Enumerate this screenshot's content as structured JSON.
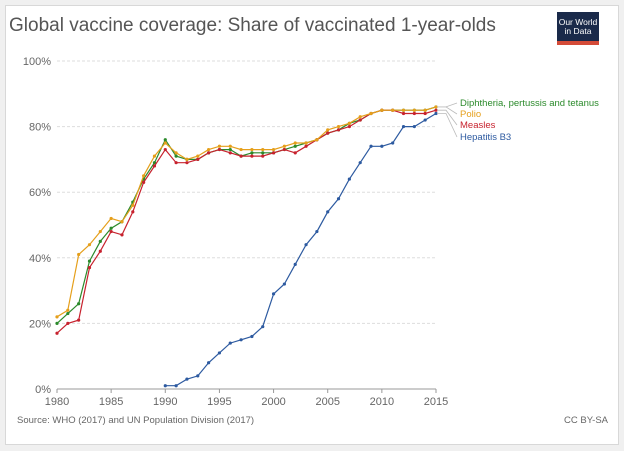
{
  "header": {
    "title": "Global vaccine coverage: Share of vaccinated 1-year-olds",
    "logo_line1": "Our World",
    "logo_line2": "in Data"
  },
  "footer": {
    "source": "Source: WHO (2017) and UN Population Division (2017)",
    "license": "CC BY-SA"
  },
  "colors": {
    "dtp": "#2b8a2b",
    "polio": "#e59f1b",
    "measles": "#c7222e",
    "hepb3": "#2d5aa0"
  },
  "chart_data": {
    "type": "line",
    "title": "Global vaccine coverage: Share of vaccinated 1-year-olds",
    "xlabel": "",
    "ylabel": "",
    "xlim": [
      1980,
      2015
    ],
    "ylim": [
      0,
      100
    ],
    "x_ticks": [
      "1980",
      "1985",
      "1990",
      "1995",
      "2000",
      "2005",
      "2010",
      "2015"
    ],
    "y_ticks": [
      "0%",
      "20%",
      "40%",
      "60%",
      "80%",
      "100%"
    ],
    "grid": true,
    "legend": "right",
    "series": [
      {
        "name": "Diphtheria, pertussis and tetanus",
        "x": [
          1980,
          1981,
          1982,
          1983,
          1984,
          1985,
          1986,
          1987,
          1988,
          1989,
          1990,
          1991,
          1992,
          1993,
          1994,
          1995,
          1996,
          1997,
          1998,
          1999,
          2000,
          2001,
          2002,
          2003,
          2004,
          2005,
          2006,
          2007,
          2008,
          2009,
          2010,
          2011,
          2012,
          2013,
          2014,
          2015
        ],
        "values": [
          20,
          23,
          26,
          39,
          45,
          49,
          51,
          57,
          64,
          69,
          76,
          71,
          70,
          70,
          72,
          73,
          73,
          71,
          72,
          72,
          72,
          73,
          74,
          75,
          76,
          78,
          79,
          81,
          82,
          84,
          85,
          85,
          85,
          85,
          85,
          86
        ]
      },
      {
        "name": "Polio",
        "x": [
          1980,
          1981,
          1982,
          1983,
          1984,
          1985,
          1986,
          1987,
          1988,
          1989,
          1990,
          1991,
          1992,
          1993,
          1994,
          1995,
          1996,
          1997,
          1998,
          1999,
          2000,
          2001,
          2002,
          2003,
          2004,
          2005,
          2006,
          2007,
          2008,
          2009,
          2010,
          2011,
          2012,
          2013,
          2014,
          2015
        ],
        "values": [
          22,
          24,
          41,
          44,
          48,
          52,
          51,
          56,
          65,
          71,
          75,
          72,
          70,
          71,
          73,
          74,
          74,
          73,
          73,
          73,
          73,
          74,
          75,
          75,
          76,
          79,
          80,
          81,
          83,
          84,
          85,
          85,
          85,
          85,
          85,
          86
        ]
      },
      {
        "name": "Measles",
        "x": [
          1980,
          1981,
          1982,
          1983,
          1984,
          1985,
          1986,
          1987,
          1988,
          1989,
          1990,
          1991,
          1992,
          1993,
          1994,
          1995,
          1996,
          1997,
          1998,
          1999,
          2000,
          2001,
          2002,
          2003,
          2004,
          2005,
          2006,
          2007,
          2008,
          2009,
          2010,
          2011,
          2012,
          2013,
          2014,
          2015
        ],
        "values": [
          17,
          20,
          21,
          37,
          42,
          48,
          47,
          54,
          63,
          68,
          73,
          69,
          69,
          70,
          72,
          73,
          72,
          71,
          71,
          71,
          72,
          73,
          72,
          74,
          76,
          78,
          79,
          80,
          82,
          84,
          85,
          85,
          84,
          84,
          84,
          85
        ]
      },
      {
        "name": "Hepatitis B3",
        "x": [
          1990,
          1991,
          1992,
          1993,
          1994,
          1995,
          1996,
          1997,
          1998,
          1999,
          2000,
          2001,
          2002,
          2003,
          2004,
          2005,
          2006,
          2007,
          2008,
          2009,
          2010,
          2011,
          2012,
          2013,
          2014,
          2015
        ],
        "values": [
          1,
          1,
          3,
          4,
          8,
          11,
          14,
          15,
          16,
          19,
          29,
          32,
          38,
          44,
          48,
          54,
          58,
          64,
          69,
          74,
          74,
          75,
          80,
          80,
          82,
          84
        ]
      }
    ]
  }
}
